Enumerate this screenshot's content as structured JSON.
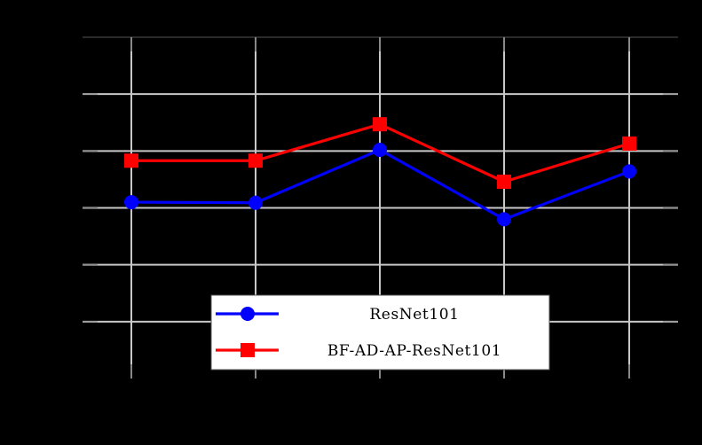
{
  "chart_data": {
    "type": "line",
    "title": "",
    "xlabel": "",
    "ylabel": "",
    "x": [
      1,
      2,
      3,
      4,
      5
    ],
    "categories": [
      "",
      "",
      "",
      "",
      ""
    ],
    "x_tick_labels_visible": false,
    "y_tick_labels_visible": false,
    "ylim": [
      0,
      6
    ],
    "y_units_note": "values expressed in gridline units (bottom of axes = 0, top = 6); tick labels not rendered",
    "grid": true,
    "legend_position": "lower center",
    "series": [
      {
        "name": "ResNet101",
        "color": "#0000FF",
        "marker": "circle",
        "values": [
          3.1,
          3.09,
          4.02,
          2.8,
          3.64
        ]
      },
      {
        "name": "BF-AD-AP-ResNet101",
        "color": "#FF0000",
        "marker": "square",
        "values": [
          3.83,
          3.83,
          4.47,
          3.46,
          4.13
        ]
      }
    ]
  },
  "style": {
    "background": "#000000",
    "grid_color": "#C8C8C8",
    "axes_border_color": "#555555",
    "legend_background": "#FFFFFF",
    "legend_border": "#555555"
  },
  "legend": {
    "items": [
      {
        "label": "ResNet101",
        "color": "#0000FF",
        "marker": "circle"
      },
      {
        "label": "BF-AD-AP-ResNet101",
        "color": "#FF0000",
        "marker": "square"
      }
    ]
  }
}
